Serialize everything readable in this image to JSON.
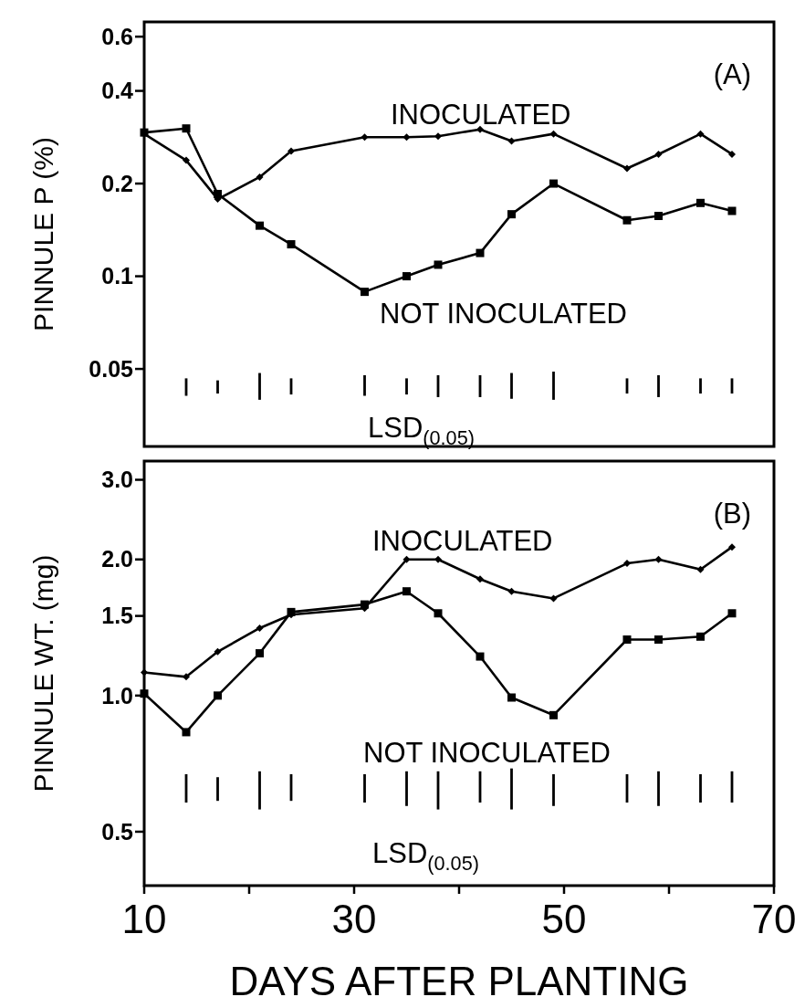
{
  "chart_data": [
    {
      "type": "line",
      "ylabel": "PINNULE P (%)",
      "log": "y",
      "xlim": [
        10,
        70
      ],
      "ylim": [
        0.028,
        0.67
      ],
      "yticks": [
        0.05,
        0.1,
        0.2,
        0.4,
        0.6
      ],
      "tick_labels": "y",
      "grid": false,
      "x": [
        10,
        14,
        17,
        21,
        24,
        31,
        35,
        38,
        42,
        45,
        49,
        56,
        59,
        63,
        66
      ],
      "annotations": [
        "(A)",
        "LSD$_{(0.05)}$"
      ],
      "series": [
        {
          "name": "INOCULATED",
          "color": "#000000",
          "marker": "diamond",
          "values": [
            0.29,
            0.238,
            0.178,
            0.21,
            0.255,
            0.283,
            0.283,
            0.285,
            0.3,
            0.275,
            0.29,
            0.224,
            0.249,
            0.29,
            0.249
          ]
        },
        {
          "name": "NOT INOCULATED",
          "color": "#000000",
          "marker": "square",
          "values": [
            0.293,
            0.302,
            0.185,
            0.146,
            0.127,
            0.089,
            0.1,
            0.109,
            0.119,
            0.159,
            0.2,
            0.152,
            0.157,
            0.173,
            0.163
          ]
        },
        {
          "type": "bar",
          "color": "#000000",
          "x": [
            14,
            17,
            21,
            24,
            31,
            35,
            38,
            42,
            45,
            49,
            56,
            59,
            63,
            66
          ],
          "base": [
            0.0409,
            0.0416,
            0.0397,
            0.0413,
            0.0409,
            0.0413,
            0.0405,
            0.0405,
            0.04,
            0.0397,
            0.0416,
            0.0405,
            0.0416,
            0.0416
          ],
          "values": [
            0.0057,
            0.0043,
            0.0088,
            0.0053,
            0.0068,
            0.0053,
            0.0072,
            0.0072,
            0.0085,
            0.0093,
            0.005,
            0.0072,
            0.005,
            0.005
          ]
        }
      ]
    },
    {
      "type": "line",
      "xlabel": "DAYS AFTER PLANTING",
      "ylabel": "PINNULE WT. (mg)",
      "log": "y",
      "xlim": [
        10,
        70
      ],
      "xticks": [
        10,
        {
          "value": 20,
          "label": null
        },
        30,
        {
          "value": 40,
          "label": null
        },
        50,
        {
          "value": 60,
          "label": null
        },
        70
      ],
      "ylim": [
        0.38,
        3.3
      ],
      "yticks": [
        0.5,
        {
          "value": 1,
          "label": "1.0"
        },
        1.5,
        {
          "value": 2,
          "label": "2.0"
        },
        {
          "value": 3,
          "label": "3.0"
        }
      ],
      "grid": false,
      "x": [
        10,
        14,
        17,
        21,
        24,
        31,
        35,
        38,
        42,
        45,
        49,
        56,
        59,
        63,
        66
      ],
      "annotations": [
        "(B)",
        "LSD$_{(0.05)}$"
      ],
      "series": [
        {
          "name": "INOCULATED",
          "color": "#000000",
          "marker": "diamond",
          "values": [
            1.125,
            1.1,
            1.25,
            1.41,
            1.51,
            1.56,
            2.0,
            2.0,
            1.81,
            1.7,
            1.64,
            1.96,
            2.0,
            1.9,
            2.13
          ]
        },
        {
          "name": "NOT INOCULATED",
          "color": "#000000",
          "marker": "square",
          "values": [
            1.01,
            0.83,
            1.0,
            1.24,
            1.53,
            1.59,
            1.7,
            1.52,
            1.22,
            0.99,
            0.905,
            1.33,
            1.33,
            1.35,
            1.52
          ]
        },
        {
          "type": "bar",
          "color": "#000000",
          "x": [
            14,
            17,
            21,
            24,
            31,
            35,
            38,
            42,
            45,
            49,
            56,
            59,
            63,
            66
          ],
          "base": [
            0.58,
            0.585,
            0.56,
            0.585,
            0.58,
            0.57,
            0.56,
            0.58,
            0.56,
            0.57,
            0.58,
            0.57,
            0.58,
            0.58
          ],
          "values": [
            0.09,
            0.075,
            0.12,
            0.085,
            0.09,
            0.11,
            0.12,
            0.1,
            0.13,
            0.1,
            0.09,
            0.11,
            0.09,
            0.1
          ]
        }
      ]
    }
  ]
}
